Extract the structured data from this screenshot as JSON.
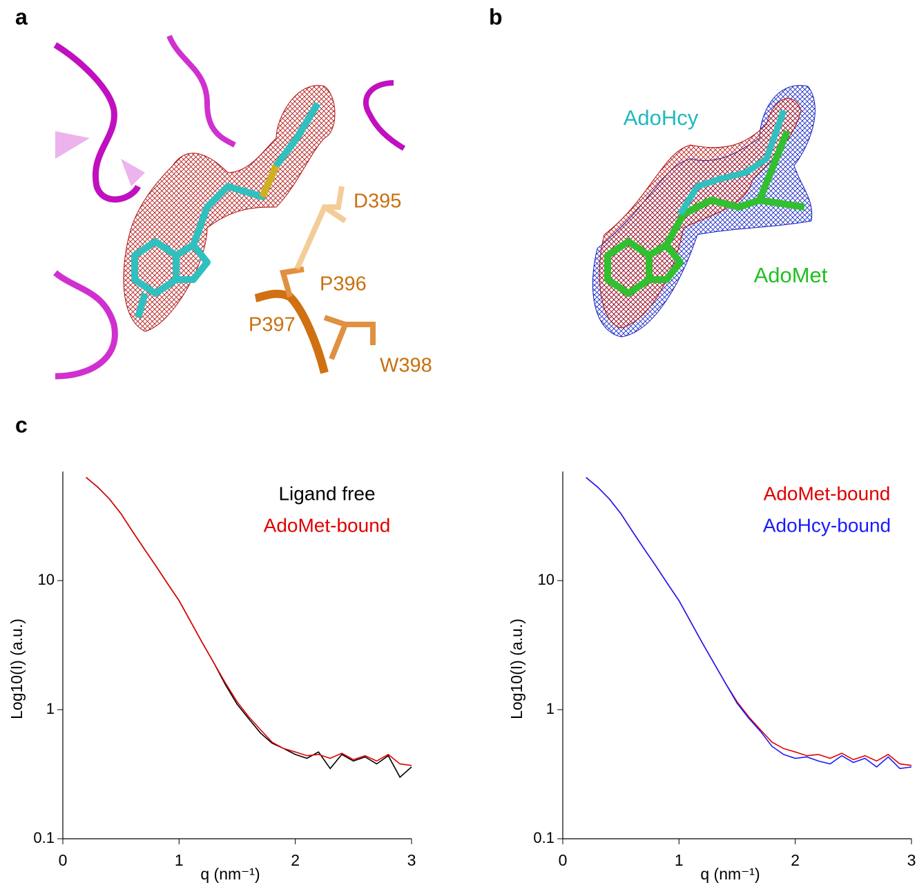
{
  "panel_labels": [
    "a",
    "b",
    "c"
  ],
  "structure_a": {
    "labels": [
      "D395",
      "P396",
      "P397",
      "W398"
    ]
  },
  "structure_b": {
    "labels": [
      "AdoHcy",
      "AdoMet"
    ]
  },
  "chart_data": [
    {
      "type": "line",
      "xlabel": "q (nm⁻¹)",
      "ylabel": "Log10(I) (a.u.)",
      "yscale": "log",
      "legend": "upper right",
      "x": [
        0.2,
        0.3,
        0.4,
        0.5,
        0.6,
        0.7,
        0.8,
        0.9,
        1.0,
        1.1,
        1.2,
        1.3,
        1.4,
        1.5,
        1.6,
        1.7,
        1.8,
        1.9,
        2.0,
        2.1,
        2.2,
        2.3,
        2.4,
        2.5,
        2.6,
        2.7,
        2.8,
        2.9,
        3.0
      ],
      "xlim": [
        0,
        3
      ],
      "xticks": [
        0,
        1,
        2,
        3
      ],
      "ylim": [
        0.1,
        70
      ],
      "yticks": [
        0.1,
        1,
        10
      ],
      "series": [
        {
          "name": "Ligand free",
          "color": "#000000",
          "values": [
            63,
            53,
            43,
            33,
            24,
            17.6,
            13,
            9.5,
            7,
            4.8,
            3.3,
            2.3,
            1.55,
            1.1,
            0.85,
            0.66,
            0.55,
            0.5,
            0.45,
            0.42,
            0.47,
            0.35,
            0.45,
            0.4,
            0.43,
            0.38,
            0.44,
            0.3,
            0.36
          ]
        },
        {
          "name": "AdoMet-bound",
          "color": "#e00000",
          "values": [
            63,
            53,
            43,
            33,
            24,
            17.6,
            13,
            9.5,
            7,
            4.8,
            3.3,
            2.3,
            1.6,
            1.15,
            0.88,
            0.7,
            0.56,
            0.5,
            0.47,
            0.44,
            0.45,
            0.42,
            0.46,
            0.41,
            0.44,
            0.4,
            0.45,
            0.38,
            0.37
          ]
        }
      ]
    },
    {
      "type": "line",
      "xlabel": "q (nm⁻¹)",
      "ylabel": "Log10(I) (a.u.)",
      "yscale": "log",
      "legend": "upper right",
      "x": [
        0.2,
        0.3,
        0.4,
        0.5,
        0.6,
        0.7,
        0.8,
        0.9,
        1.0,
        1.1,
        1.2,
        1.3,
        1.4,
        1.5,
        1.6,
        1.7,
        1.8,
        1.9,
        2.0,
        2.1,
        2.2,
        2.3,
        2.4,
        2.5,
        2.6,
        2.7,
        2.8,
        2.9,
        3.0
      ],
      "xlim": [
        0,
        3
      ],
      "xticks": [
        0,
        1,
        2,
        3
      ],
      "ylim": [
        0.1,
        70
      ],
      "yticks": [
        0.1,
        1,
        10
      ],
      "series": [
        {
          "name": "AdoMet-bound",
          "color": "#e00000",
          "values": [
            63,
            53,
            43,
            33,
            24,
            17.6,
            13,
            9.5,
            7,
            4.8,
            3.3,
            2.3,
            1.6,
            1.15,
            0.88,
            0.7,
            0.56,
            0.5,
            0.47,
            0.44,
            0.45,
            0.42,
            0.46,
            0.41,
            0.44,
            0.4,
            0.45,
            0.38,
            0.37
          ]
        },
        {
          "name": "AdoHcy-bound",
          "color": "#1a1aff",
          "values": [
            63,
            53,
            43,
            33,
            24,
            17.6,
            13,
            9.5,
            7,
            4.8,
            3.3,
            2.3,
            1.6,
            1.12,
            0.86,
            0.68,
            0.52,
            0.45,
            0.42,
            0.43,
            0.4,
            0.38,
            0.44,
            0.39,
            0.42,
            0.36,
            0.43,
            0.35,
            0.36
          ]
        }
      ]
    }
  ]
}
